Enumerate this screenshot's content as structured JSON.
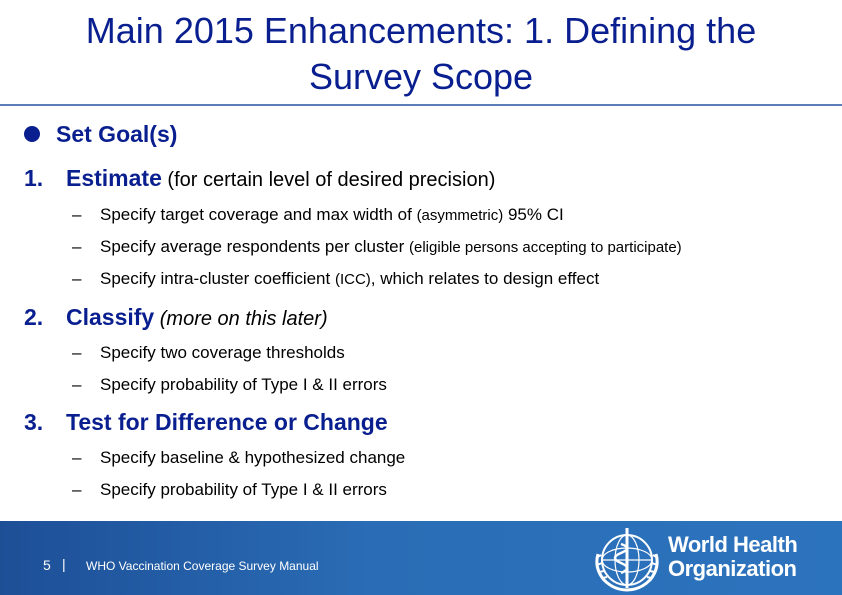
{
  "slide": {
    "title_line1": "Main 2015 Enhancements: 1. Defining the",
    "title_line2": "Survey Scope"
  },
  "content": {
    "goal": "Set Goal(s)",
    "item1": {
      "num": "1.",
      "label": "Estimate",
      "note": " (for certain level of desired precision)"
    },
    "item1_sub": [
      {
        "a": "Specify target coverage and max width of ",
        "b": "(asymmetric)",
        "c": " 95% CI"
      },
      {
        "a": "Specify average respondents per cluster ",
        "b": "(eligible persons accepting to participate)",
        "c": ""
      },
      {
        "a": "Specify intra-cluster coefficient ",
        "b": "(ICC)",
        "c": ", which relates to design effect"
      }
    ],
    "item2": {
      "num": "2.",
      "label": "Classify",
      "note": " (more on this later)"
    },
    "item2_sub": [
      "Specify two coverage thresholds",
      "Specify probability of Type I & II errors"
    ],
    "item3": {
      "num": "3.",
      "label": "Test for Difference or Change"
    },
    "item3_sub": [
      "Specify baseline & hypothesized change",
      "Specify probability of Type I & II errors"
    ],
    "dash": "–"
  },
  "footer": {
    "page_number": "5",
    "separator": "|",
    "manual_title": "WHO Vaccination Coverage Survey Manual",
    "org_line1": "World Health",
    "org_line2": "Organization",
    "logo_icon": "who-emblem-icon"
  },
  "colors": {
    "title": "#0a1f8f",
    "footer": "#2a6db6",
    "rule": "#5b7db8"
  }
}
